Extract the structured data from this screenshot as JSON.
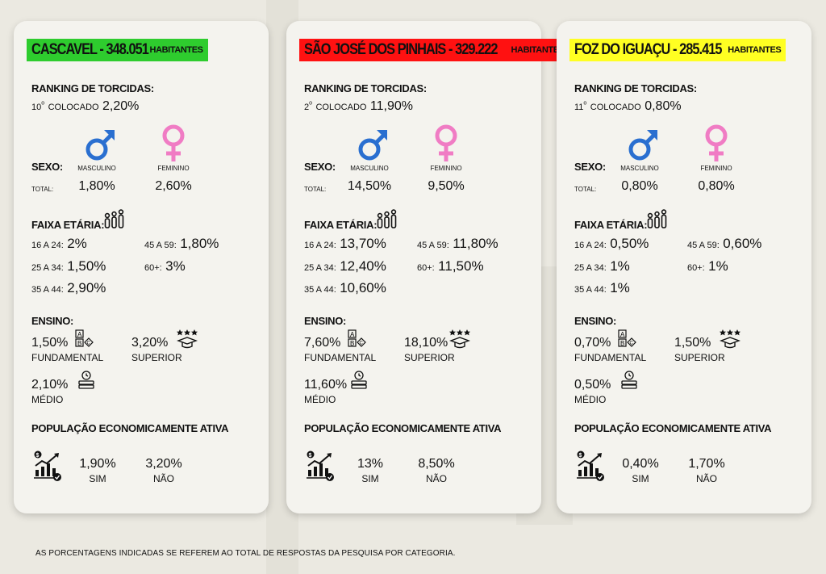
{
  "colors": {
    "green": "#2ecc2e",
    "red": "#ff1111",
    "yellow": "#ffff22",
    "male": "#2a6fd0",
    "female": "#f07cc4"
  },
  "labels": {
    "ranking": "RANKING DE TORCIDAS:",
    "colocado": "COLOCADO",
    "sexo": "SEXO:",
    "masculino": "MASCULINO",
    "feminino": "FEMININO",
    "total": "TOTAL:",
    "faixa": "FAIXA ETÁRIA:",
    "ensino": "ENSINO:",
    "fundamental": "FUNDAMENTAL",
    "superior": "SUPERIOR",
    "medio": "MÉDIO",
    "pea": "POPULAÇÃO ECONOMICAMENTE ATIVA",
    "sim": "SIM",
    "nao": "NÃO",
    "habitantes": "HABITANTES",
    "age_16_24": "16 A 24:",
    "age_25_34": "25 A 34:",
    "age_35_44": "35 A 44:",
    "age_45_59": "45 A 59:",
    "age_60": "60+:"
  },
  "footer": "AS PORCENTAGENS INDICADAS SE REFEREM AO TOTAL DE RESPOSTAS DA PESQUISA POR CATEGORIA.",
  "cards": [
    {
      "city": "CASCAVEL - 348.051",
      "title_color": "green",
      "rank_pos": "10",
      "rank_ord": "o",
      "rank_pct": "2,20%",
      "masc": "1,80%",
      "fem": "2,60%",
      "age_16_24": "2%",
      "age_25_34": "1,50%",
      "age_35_44": "2,90%",
      "age_45_59": "1,80%",
      "age_60": "3%",
      "fundamental": "1,50%",
      "superior": "3,20%",
      "medio": "2,10%",
      "sim": "1,90%",
      "nao": "3,20%"
    },
    {
      "city": "SÃO JOSÉ DOS PINHAIS - 329.222",
      "title_color": "red",
      "rank_pos": "2",
      "rank_ord": "o",
      "rank_pct": "11,90%",
      "masc": "14,50%",
      "fem": "9,50%",
      "age_16_24": "13,70%",
      "age_25_34": "12,40%",
      "age_35_44": "10,60%",
      "age_45_59": "11,80%",
      "age_60": "11,50%",
      "fundamental": "7,60%",
      "superior": "18,10%",
      "medio": "11,60%",
      "sim": "13%",
      "nao": "8,50%"
    },
    {
      "city": "FOZ DO IGUAÇU - 285.415",
      "title_color": "yellow",
      "rank_pos": "11",
      "rank_ord": "o",
      "rank_pct": "0,80%",
      "masc": "0,80%",
      "fem": "0,80%",
      "age_16_24": "0,50%",
      "age_25_34": "1%",
      "age_35_44": "1%",
      "age_45_59": "0,60%",
      "age_60": "1%",
      "fundamental": "0,70%",
      "superior": "1,50%",
      "medio": "0,50%",
      "sim": "0,40%",
      "nao": "1,70%"
    }
  ]
}
